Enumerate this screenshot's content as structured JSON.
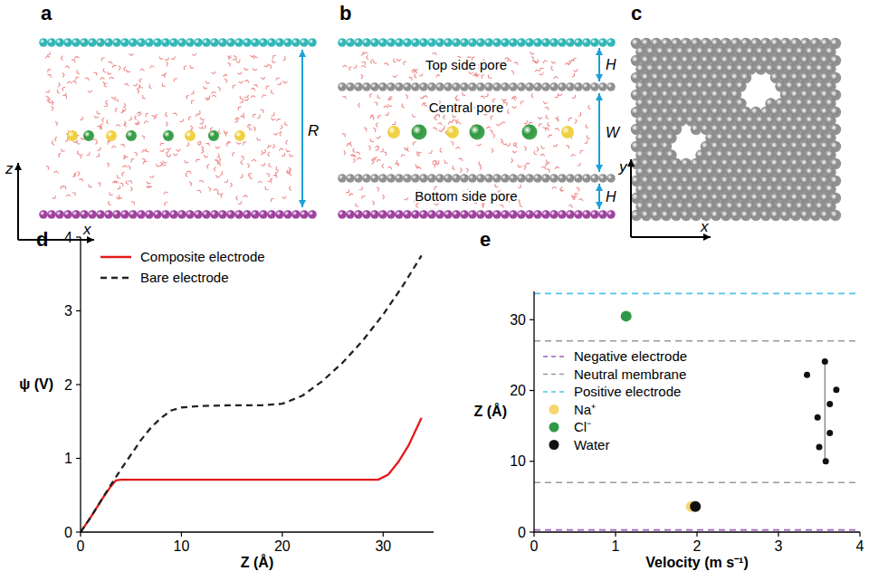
{
  "diagrams": {
    "a": {
      "letter": "a",
      "labels": [
        "R"
      ],
      "axes": [
        "x",
        "z"
      ]
    },
    "b": {
      "letter": "b",
      "labels": [
        "Top side pore",
        "Central pore",
        "Bottom side pore"
      ],
      "dims": [
        "H",
        "W",
        "H"
      ]
    },
    "c": {
      "letter": "c",
      "axes": [
        "x",
        "y"
      ]
    }
  },
  "chart_data": [
    {
      "panel": "d",
      "type": "line",
      "x_label": "Z (Å)",
      "y_label": "ψ (V)",
      "xlim": [
        0,
        35
      ],
      "ylim": [
        0,
        4
      ],
      "xticks": [
        0,
        10,
        20,
        30
      ],
      "yticks": [
        0,
        1,
        2,
        3,
        4
      ],
      "legend": "upper left",
      "series": [
        {
          "name": "Composite electrode",
          "color": "#e41a1c",
          "line_style": "solid",
          "x": [
            0,
            1,
            2,
            3,
            3.5,
            4,
            10,
            20,
            29.5,
            30.5,
            31.5,
            32.5,
            33.8
          ],
          "values": [
            0,
            0.2,
            0.42,
            0.62,
            0.7,
            0.71,
            0.71,
            0.71,
            0.71,
            0.78,
            0.95,
            1.17,
            1.55
          ]
        },
        {
          "name": "Bare electrode",
          "color": "#222222",
          "line_style": "dashed",
          "x": [
            0,
            1,
            2,
            3,
            4,
            5,
            6,
            7,
            8,
            9,
            10,
            12,
            15,
            18,
            20,
            22,
            24,
            26,
            28,
            30,
            32,
            33.8
          ],
          "values": [
            0,
            0.2,
            0.42,
            0.64,
            0.85,
            1.05,
            1.25,
            1.42,
            1.55,
            1.65,
            1.69,
            1.71,
            1.72,
            1.72,
            1.74,
            1.85,
            2.05,
            2.3,
            2.6,
            2.95,
            3.35,
            3.75
          ]
        }
      ]
    },
    {
      "panel": "e",
      "type": "scatter",
      "x_label": "Velocity (m s⁻¹)",
      "y_label": "Z (Å)",
      "xlim": [
        0,
        4
      ],
      "ylim": [
        0,
        34
      ],
      "xticks": [
        0,
        1,
        2,
        3,
        4
      ],
      "yticks": [
        0,
        10,
        20,
        30
      ],
      "legend": "left",
      "series": [
        {
          "name": "Negative electrode",
          "type": "hline",
          "line_style": "dashed",
          "color": "#a05fc0",
          "values": [
            0.3
          ]
        },
        {
          "name": "Neutral membrane",
          "type": "hline",
          "line_style": "dashed",
          "color": "#999999",
          "values": [
            7,
            27
          ]
        },
        {
          "name": "Positive electrode",
          "type": "hline",
          "line_style": "dashed",
          "color": "#4fc3e8",
          "values": [
            33.7
          ]
        },
        {
          "type": "line",
          "line_style": "solid",
          "color": "#777777",
          "x": [
            3.57,
            3.57
          ],
          "values": [
            10,
            24
          ]
        },
        {
          "name": "Na⁺",
          "marker": "circle",
          "color": "#f5d76e",
          "x": [
            1.93
          ],
          "values": [
            3.6
          ]
        },
        {
          "name": "Cl⁻",
          "marker": "circle",
          "color": "#2e9a48",
          "x": [
            1.13
          ],
          "values": [
            30.5
          ]
        },
        {
          "name": "Water",
          "marker": "circle",
          "color": "#111111",
          "x": [
            1.98,
            3.35,
            3.57,
            3.71,
            3.63,
            3.48,
            3.63,
            3.5,
            3.58
          ],
          "values": [
            3.6,
            22.2,
            24.1,
            20.1,
            18.1,
            16.2,
            14.0,
            12.0,
            10.0
          ]
        }
      ]
    }
  ]
}
